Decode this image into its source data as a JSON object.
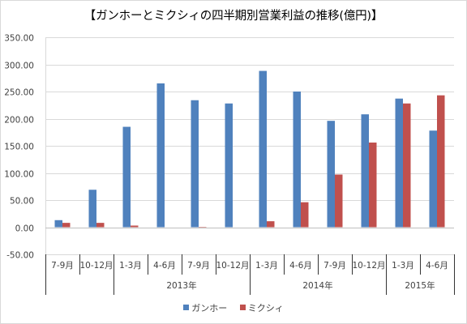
{
  "title": "【ガンホーとミクシィの四半期別営業利益の推移(億円)】",
  "colors": {
    "gungho": "#4f81bd",
    "mixi": "#c0504d"
  },
  "chart_data": {
    "type": "bar",
    "title": "【ガンホーとミクシィの四半期別営業利益の推移(億円)】",
    "categories": [
      "7-9月",
      "10-12月",
      "1-3月",
      "4-6月",
      "7-9月",
      "10-12月",
      "1-3月",
      "4-6月",
      "7-9月",
      "10-12月",
      "1-3月",
      "4-6月"
    ],
    "groups": [
      {
        "label": "",
        "span": 2
      },
      {
        "label": "2013年",
        "span": 4
      },
      {
        "label": "2014年",
        "span": 4
      },
      {
        "label": "2015年",
        "span": 2
      }
    ],
    "series": [
      {
        "name": "ガンホー",
        "values": [
          13,
          69,
          185,
          265,
          234,
          228,
          288,
          250,
          196,
          208,
          237,
          178
        ]
      },
      {
        "name": "ミクシィ",
        "values": [
          8,
          8,
          3,
          0,
          -2,
          0,
          11,
          46,
          97,
          156,
          228,
          243
        ]
      }
    ],
    "ylim": [
      -50,
      350
    ],
    "yticks": [
      "-50.00",
      "0.00",
      "50.00",
      "100.00",
      "150.00",
      "200.00",
      "250.00",
      "300.00",
      "350.00"
    ],
    "grid": true,
    "legend": "bottom"
  }
}
